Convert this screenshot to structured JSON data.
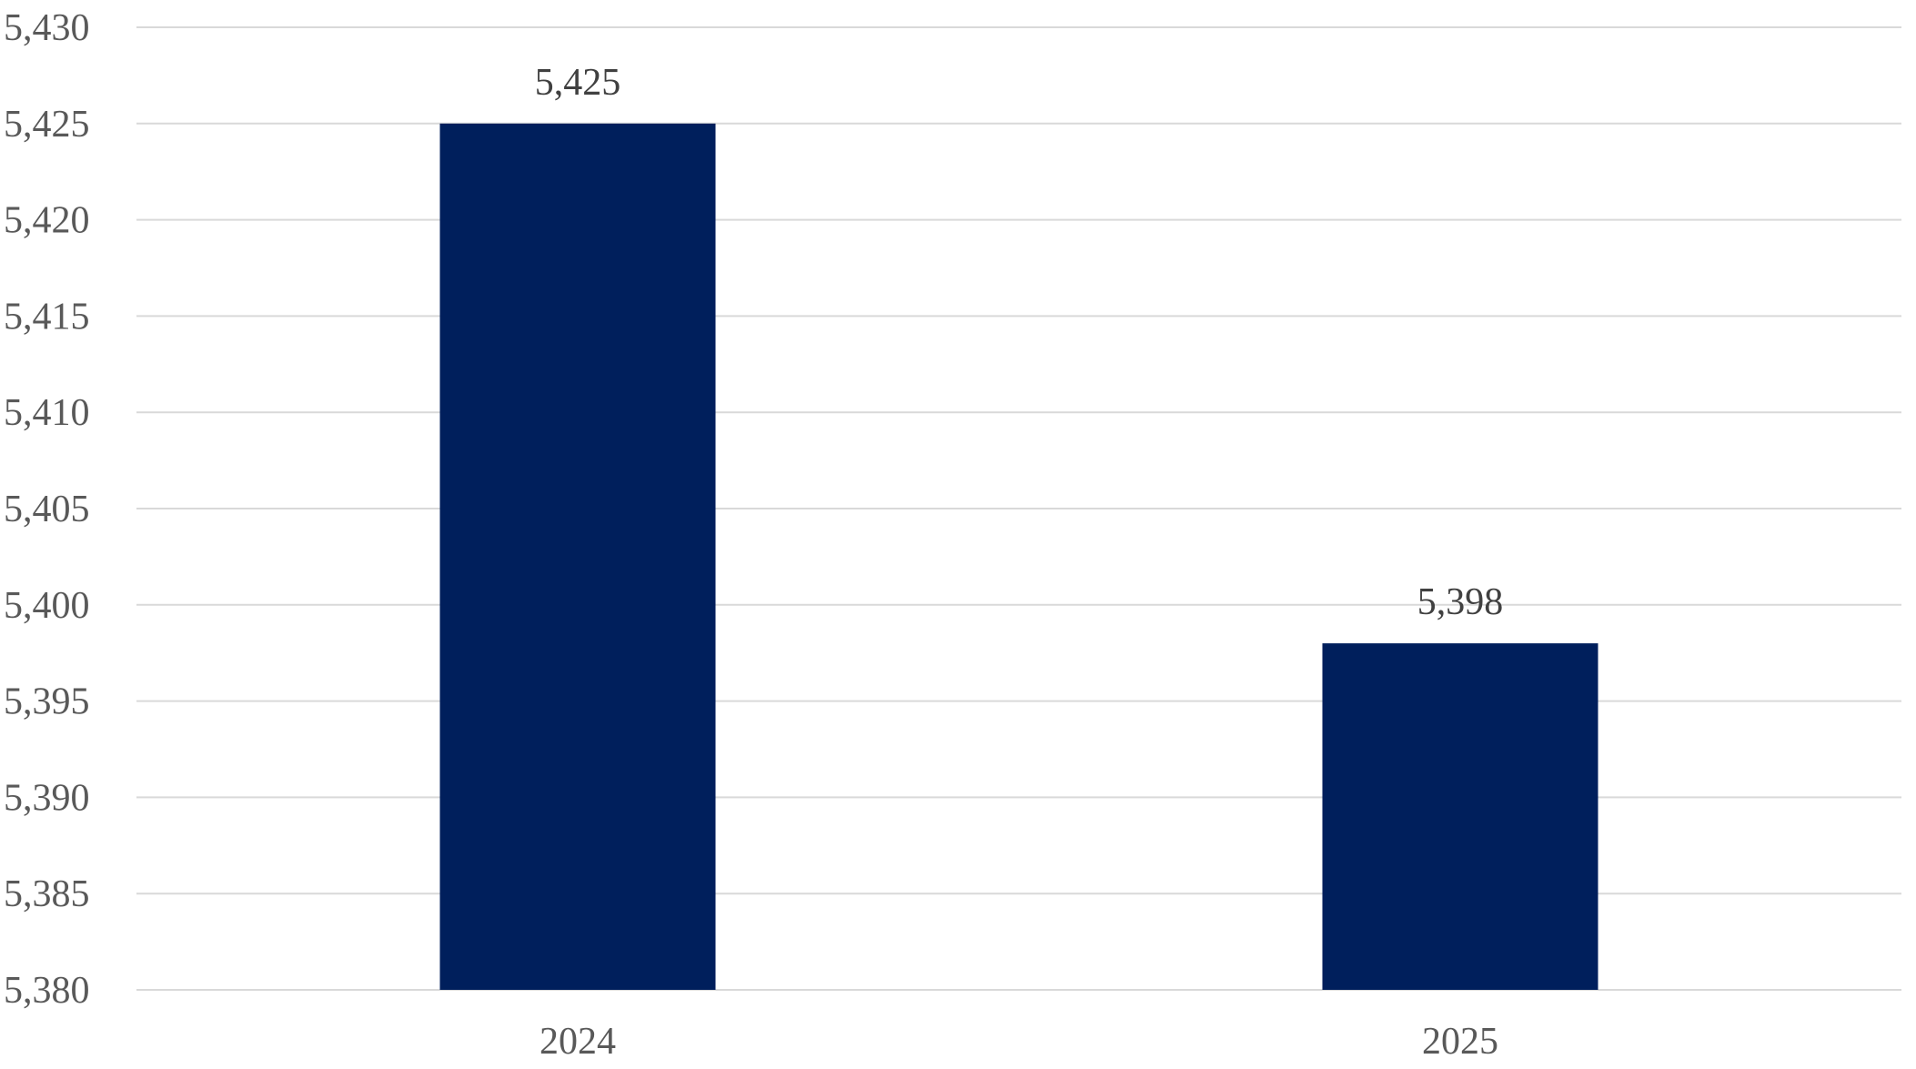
{
  "chart_data": {
    "type": "bar",
    "categories": [
      "2024",
      "2025"
    ],
    "values": [
      5425,
      5398
    ],
    "data_labels": [
      "5,425",
      "5,398"
    ],
    "ylim": [
      5380,
      5430
    ],
    "y_ticks": [
      5380,
      5385,
      5390,
      5395,
      5400,
      5405,
      5410,
      5415,
      5420,
      5425,
      5430
    ],
    "y_tick_labels": [
      "5,380",
      "5,385",
      "5,390",
      "5,395",
      "5,400",
      "5,405",
      "5,410",
      "5,415",
      "5,420",
      "5,425",
      "5,430"
    ],
    "grid": true,
    "legend": "none",
    "colors": {
      "bar": "#001f5c",
      "grid": "#d9d9d9",
      "tick_text": "#595959",
      "label_text": "#404040"
    }
  }
}
